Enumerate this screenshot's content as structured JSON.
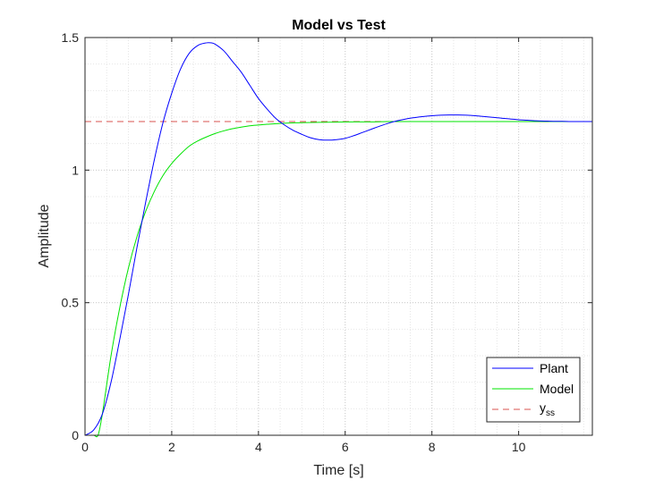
{
  "chart_data": {
    "type": "line",
    "title": "Model vs Test",
    "xlabel": "Time [s]",
    "ylabel": "Amplitude",
    "xlim": [
      0,
      11.7
    ],
    "ylim": [
      0,
      1.5
    ],
    "xticks": [
      0,
      2,
      4,
      6,
      8,
      10
    ],
    "xtick_labels": [
      "0",
      "2",
      "4",
      "6",
      "8",
      "10"
    ],
    "yticks": [
      0,
      0.5,
      1,
      1.5
    ],
    "ytick_labels": [
      "0",
      "0.5",
      "1",
      "1.5"
    ],
    "grid": "on, major and minor dotted",
    "legend_position": "bottom-right",
    "series": [
      {
        "name": "Plant",
        "color": "#0000ff",
        "style": "solid",
        "x": [
          0,
          0.2,
          0.4,
          0.6,
          0.8,
          1.0,
          1.2,
          1.4,
          1.6,
          1.8,
          2.0,
          2.2,
          2.4,
          2.6,
          2.8,
          2.9,
          3.0,
          3.2,
          3.4,
          3.6,
          3.8,
          4.0,
          4.2,
          4.4,
          4.6,
          4.8,
          5.0,
          5.2,
          5.4,
          5.6,
          5.8,
          6.0,
          6.2,
          6.4,
          6.6,
          6.8,
          7.0,
          7.2,
          7.4,
          7.6,
          7.8,
          8.0,
          8.2,
          8.4,
          8.6,
          8.8,
          9.0,
          9.2,
          9.4,
          9.6,
          9.8,
          10.0,
          10.2,
          10.4,
          10.6,
          10.8,
          11.0,
          11.2,
          11.4,
          11.7
        ],
        "y": [
          0,
          0.02,
          0.08,
          0.2,
          0.36,
          0.53,
          0.71,
          0.88,
          1.04,
          1.18,
          1.29,
          1.38,
          1.44,
          1.47,
          1.48,
          1.48,
          1.475,
          1.45,
          1.41,
          1.37,
          1.32,
          1.27,
          1.23,
          1.195,
          1.17,
          1.15,
          1.135,
          1.122,
          1.115,
          1.113,
          1.115,
          1.12,
          1.13,
          1.142,
          1.154,
          1.166,
          1.177,
          1.186,
          1.193,
          1.198,
          1.202,
          1.205,
          1.207,
          1.208,
          1.208,
          1.207,
          1.205,
          1.202,
          1.199,
          1.196,
          1.193,
          1.19,
          1.188,
          1.186,
          1.185,
          1.184,
          1.184,
          1.183,
          1.183,
          1.183
        ]
      },
      {
        "name": "Model",
        "color": "#00e400",
        "style": "solid",
        "x": [
          0,
          0.2,
          0.3,
          0.4,
          0.6,
          0.8,
          1.0,
          1.2,
          1.4,
          1.6,
          1.8,
          2.0,
          2.2,
          2.4,
          2.6,
          2.8,
          3.0,
          3.2,
          3.4,
          3.6,
          3.8,
          4.0,
          4.2,
          4.4,
          4.6,
          4.8,
          5.0,
          5.4,
          5.8,
          6.2,
          6.6,
          7.0,
          7.5,
          8.0,
          9.0,
          10.0,
          11.0,
          11.7
        ],
        "y": [
          0,
          0,
          0,
          0.08,
          0.3,
          0.48,
          0.63,
          0.75,
          0.845,
          0.92,
          0.98,
          1.025,
          1.06,
          1.09,
          1.11,
          1.125,
          1.138,
          1.148,
          1.156,
          1.162,
          1.167,
          1.17,
          1.173,
          1.175,
          1.177,
          1.178,
          1.179,
          1.18,
          1.181,
          1.182,
          1.182,
          1.183,
          1.183,
          1.183,
          1.183,
          1.183,
          1.183,
          1.183
        ]
      },
      {
        "name": "y_ss",
        "legend_main": "y",
        "legend_sub": "ss",
        "color": "#d9534f",
        "style": "dashed",
        "x": [
          0,
          11.7
        ],
        "y": [
          1.183,
          1.183
        ]
      }
    ]
  }
}
